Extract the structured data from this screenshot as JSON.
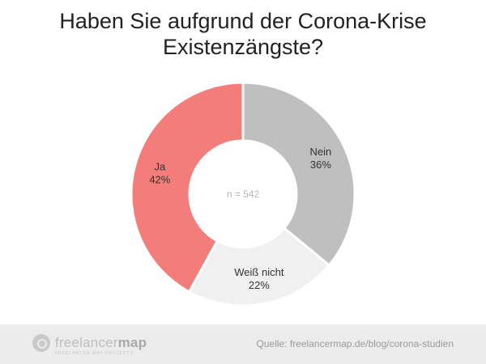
{
  "title": {
    "line1": "Haben Sie aufgrund der Corona-Krise",
    "line2": "Existenzängste?"
  },
  "chart_data": {
    "type": "pie",
    "variant": "donut",
    "title": "Haben Sie aufgrund der Corona-Krise Existenzängste?",
    "center_label": "n = 542",
    "slices": [
      {
        "label": "Nein",
        "value": 36,
        "value_label": "36%",
        "color": "#bfbfbf"
      },
      {
        "label": "Weiß nicht",
        "value": 22,
        "value_label": "22%",
        "color": "#f0f0f0"
      },
      {
        "label": "Ja",
        "value": 42,
        "value_label": "42%",
        "color": "#f37d7a"
      }
    ]
  },
  "footer": {
    "logo_text_light": "freelancer",
    "logo_text_bold": "map",
    "logo_tagline": "FREELANCER MAP PROJECTS",
    "source": "Quelle: freelancermap.de/blog/corona-studien"
  }
}
